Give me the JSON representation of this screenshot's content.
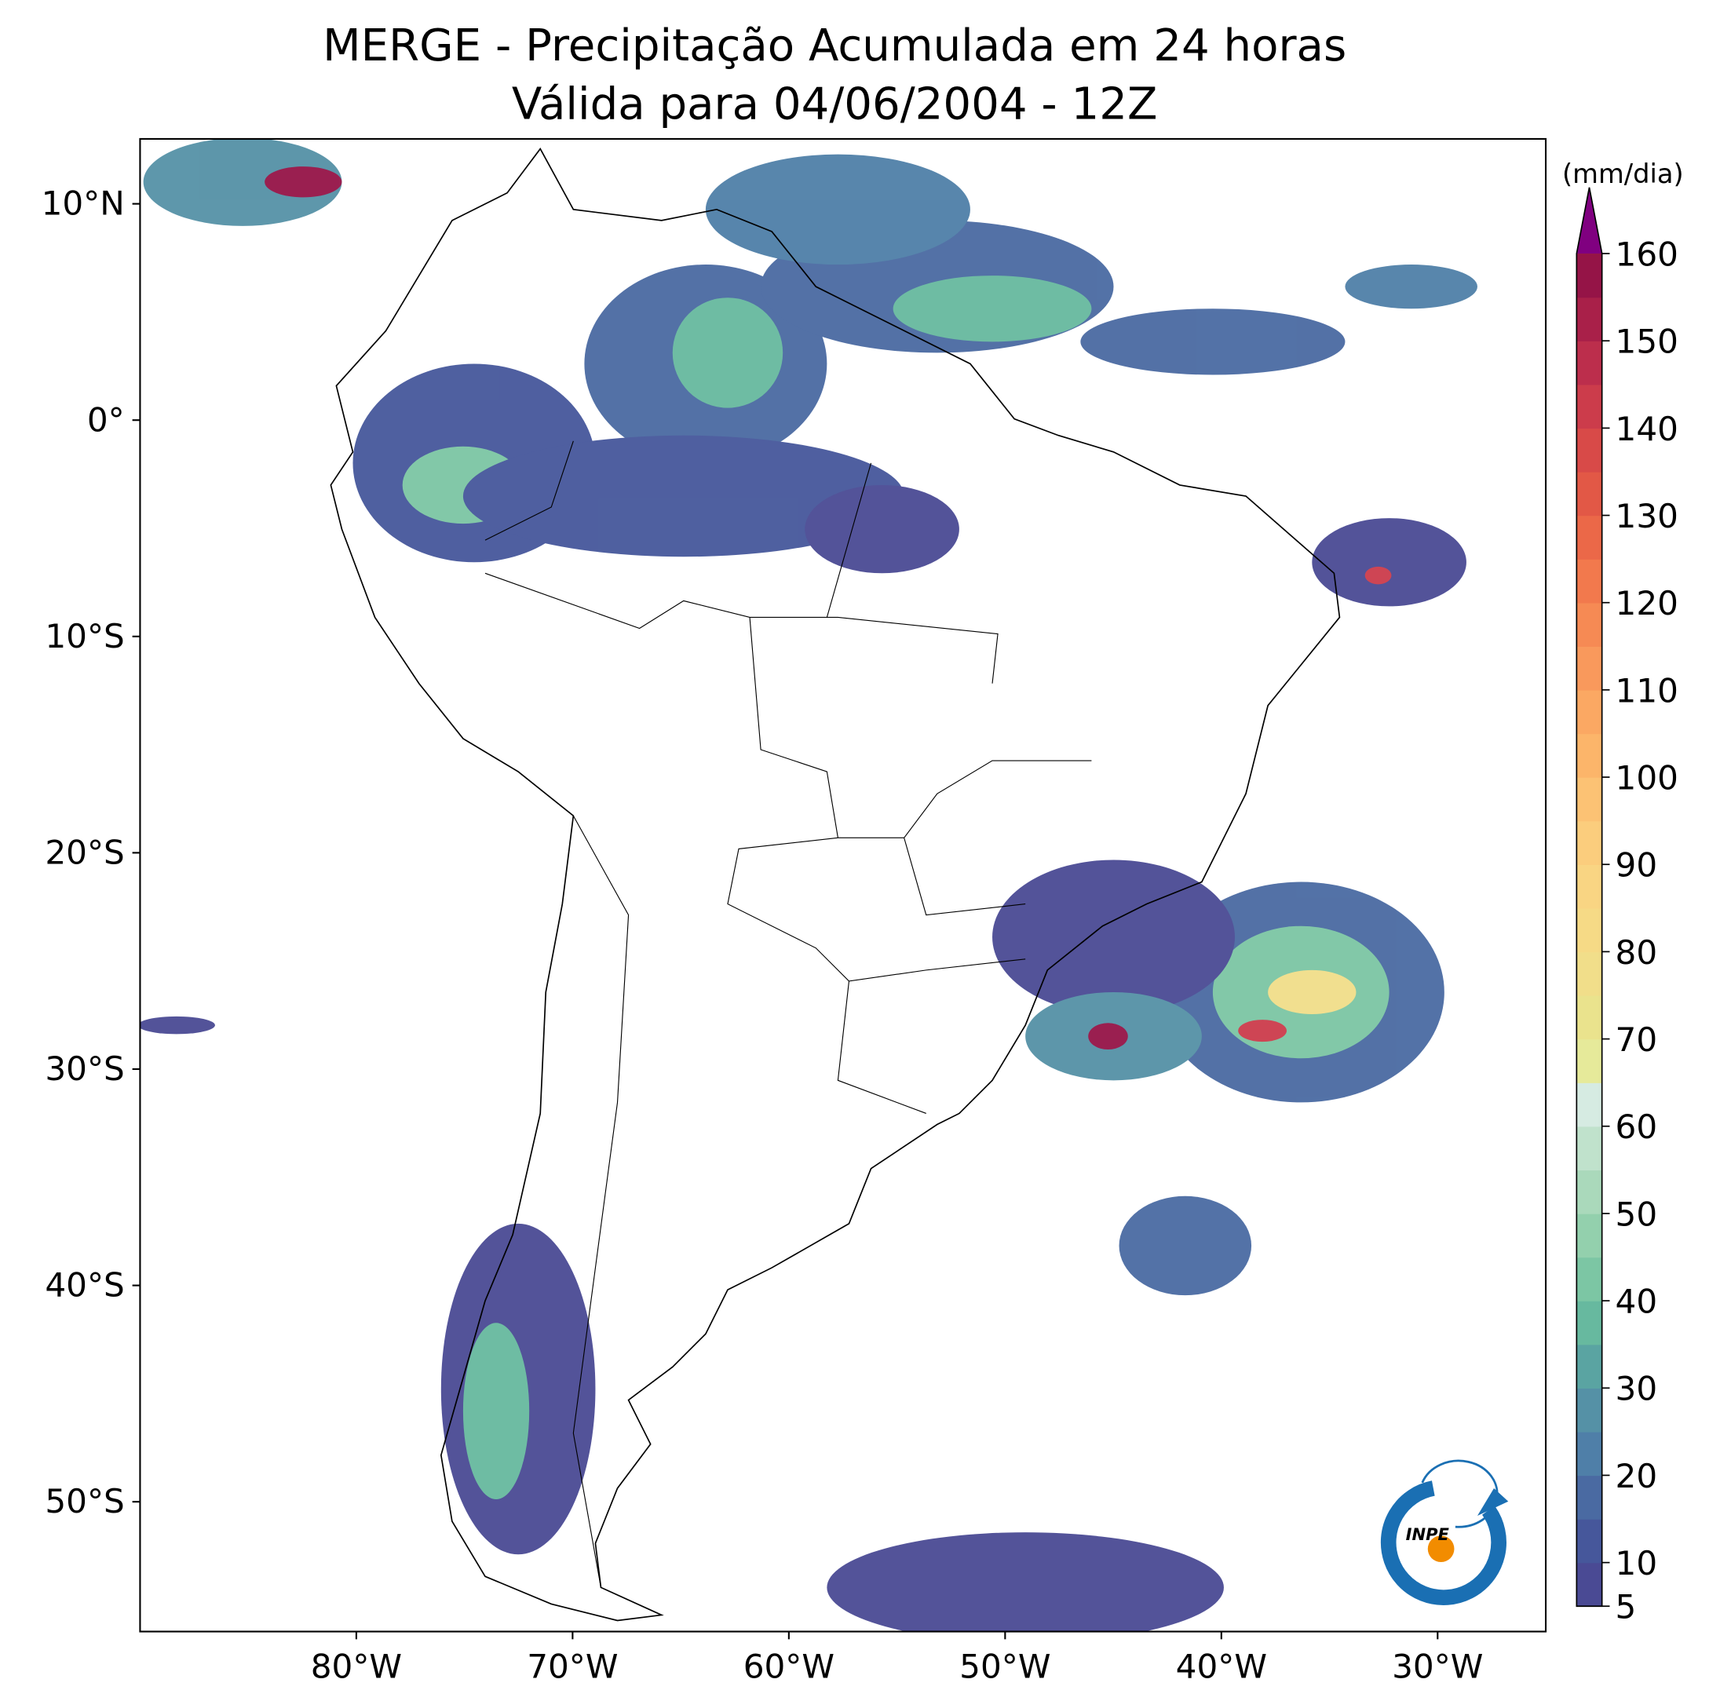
{
  "map": {
    "title": "MERGE - Precipitação Acumulada em 24 horas",
    "subtitle": "Válida para 04/06/2004 - 12Z",
    "lon_range": [
      -90,
      -25
    ],
    "lat_range": [
      -56,
      13
    ],
    "lat_ticks": [
      {
        "value": 10,
        "label": "10°N"
      },
      {
        "value": 0,
        "label": "0°"
      },
      {
        "value": -10,
        "label": "10°S"
      },
      {
        "value": -20,
        "label": "20°S"
      },
      {
        "value": -30,
        "label": "30°S"
      },
      {
        "value": -40,
        "label": "40°S"
      },
      {
        "value": -50,
        "label": "50°S"
      }
    ],
    "lon_ticks": [
      {
        "value": -80,
        "label": "80°W"
      },
      {
        "value": -70,
        "label": "70°W"
      },
      {
        "value": -60,
        "label": "60°W"
      },
      {
        "value": -50,
        "label": "50°W"
      },
      {
        "value": -40,
        "label": "40°W"
      },
      {
        "value": -30,
        "label": "30°W"
      }
    ],
    "logo": "INPE"
  },
  "colorbar": {
    "label": "(mm/dia)",
    "ticks": [
      5,
      10,
      20,
      30,
      40,
      50,
      60,
      70,
      80,
      90,
      100,
      110,
      120,
      130,
      140,
      150,
      160
    ],
    "colors": [
      "#4a4a94",
      "#46579b",
      "#4a6aa2",
      "#4f7fa8",
      "#5591a6",
      "#5aa4a2",
      "#67b99f",
      "#7cc6a4",
      "#93d0ad",
      "#aad9bb",
      "#c0e2cc",
      "#d6ebe2",
      "#e6ea9a",
      "#eae38d",
      "#f1de8a",
      "#f6da86",
      "#f9d583",
      "#fbcd7d",
      "#fcc274",
      "#fcb56a",
      "#fba863",
      "#f9995c",
      "#f68a54",
      "#f2794d",
      "#eb6848",
      "#e25846",
      "#d84a48",
      "#cc3c4b",
      "#bc2e4c",
      "#a92049",
      "#951447"
    ],
    "extend_color": "#800080"
  }
}
